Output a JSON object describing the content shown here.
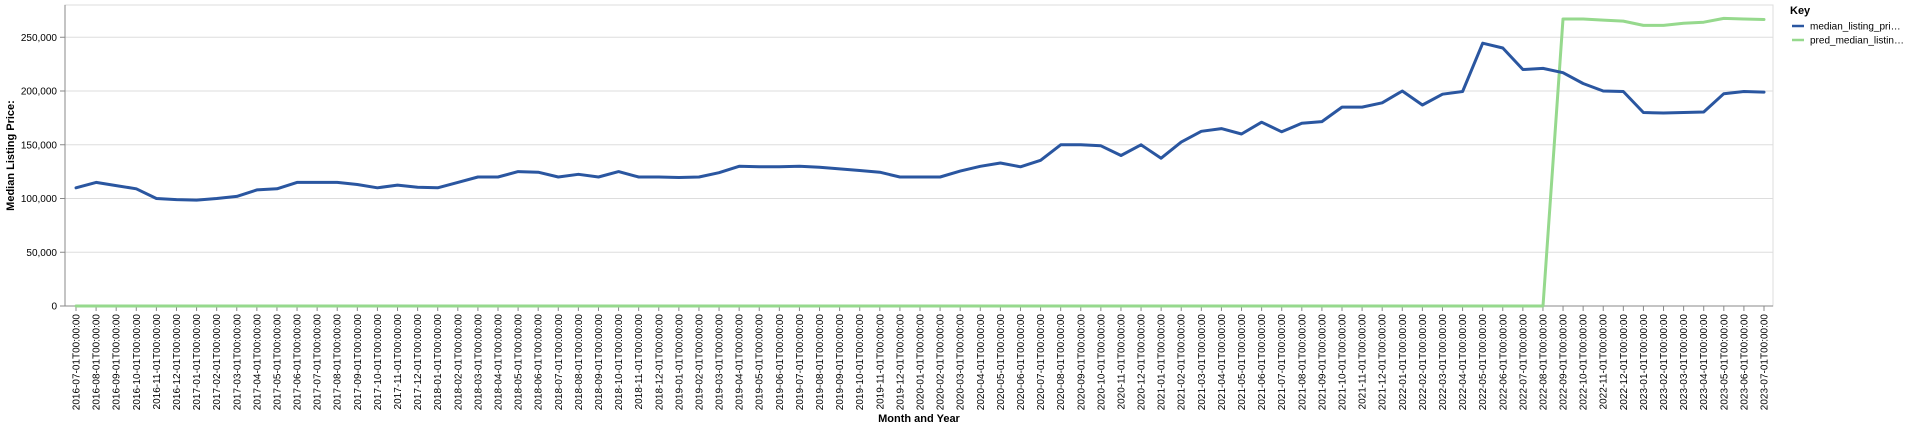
{
  "chart_data": {
    "type": "line",
    "xlabel": "Month and Year",
    "ylabel": "Median Listing Price:",
    "ylim": [
      0,
      280000
    ],
    "yticks": [
      0,
      50000,
      100000,
      150000,
      200000,
      250000
    ],
    "ytick_labels": [
      "0",
      "50,000",
      "100,000",
      "150,000",
      "200,000",
      "250,000"
    ],
    "grid": true,
    "legend_title": "Key",
    "legend_position": "right",
    "x": [
      "2016-07-01T00:00:00",
      "2016-08-01T00:00:00",
      "2016-09-01T00:00:00",
      "2016-10-01T00:00:00",
      "2016-11-01T00:00:00",
      "2016-12-01T00:00:00",
      "2017-01-01T00:00:00",
      "2017-02-01T00:00:00",
      "2017-03-01T00:00:00",
      "2017-04-01T00:00:00",
      "2017-05-01T00:00:00",
      "2017-06-01T00:00:00",
      "2017-07-01T00:00:00",
      "2017-08-01T00:00:00",
      "2017-09-01T00:00:00",
      "2017-10-01T00:00:00",
      "2017-11-01T00:00:00",
      "2017-12-01T00:00:00",
      "2018-01-01T00:00:00",
      "2018-02-01T00:00:00",
      "2018-03-01T00:00:00",
      "2018-04-01T00:00:00",
      "2018-05-01T00:00:00",
      "2018-06-01T00:00:00",
      "2018-07-01T00:00:00",
      "2018-08-01T00:00:00",
      "2018-09-01T00:00:00",
      "2018-10-01T00:00:00",
      "2018-11-01T00:00:00",
      "2018-12-01T00:00:00",
      "2019-01-01T00:00:00",
      "2019-02-01T00:00:00",
      "2019-03-01T00:00:00",
      "2019-04-01T00:00:00",
      "2019-05-01T00:00:00",
      "2019-06-01T00:00:00",
      "2019-07-01T00:00:00",
      "2019-08-01T00:00:00",
      "2019-09-01T00:00:00",
      "2019-10-01T00:00:00",
      "2019-11-01T00:00:00",
      "2019-12-01T00:00:00",
      "2020-01-01T00:00:00",
      "2020-02-01T00:00:00",
      "2020-03-01T00:00:00",
      "2020-04-01T00:00:00",
      "2020-05-01T00:00:00",
      "2020-06-01T00:00:00",
      "2020-07-01T00:00:00",
      "2020-08-01T00:00:00",
      "2020-09-01T00:00:00",
      "2020-10-01T00:00:00",
      "2020-11-01T00:00:00",
      "2020-12-01T00:00:00",
      "2021-01-01T00:00:00",
      "2021-02-01T00:00:00",
      "2021-03-01T00:00:00",
      "2021-04-01T00:00:00",
      "2021-05-01T00:00:00",
      "2021-06-01T00:00:00",
      "2021-07-01T00:00:00",
      "2021-08-01T00:00:00",
      "2021-09-01T00:00:00",
      "2021-10-01T00:00:00",
      "2021-11-01T00:00:00",
      "2021-12-01T00:00:00",
      "2022-01-01T00:00:00",
      "2022-02-01T00:00:00",
      "2022-03-01T00:00:00",
      "2022-04-01T00:00:00",
      "2022-05-01T00:00:00",
      "2022-06-01T00:00:00",
      "2022-07-01T00:00:00",
      "2022-08-01T00:00:00",
      "2022-09-01T00:00:00",
      "2022-10-01T00:00:00",
      "2022-11-01T00:00:00",
      "2022-12-01T00:00:00",
      "2023-01-01T00:00:00",
      "2023-02-01T00:00:00",
      "2023-03-01T00:00:00",
      "2023-04-01T00:00:00",
      "2023-05-01T00:00:00",
      "2023-06-01T00:00:00",
      "2023-07-01T00:00:00"
    ],
    "series": [
      {
        "name": "median_listing_pri…",
        "color": "#2a56a0",
        "values": [
          110000,
          115000,
          112000,
          109000,
          100000,
          99000,
          98500,
          100000,
          102000,
          108000,
          109000,
          115000,
          115000,
          115000,
          113000,
          110000,
          112500,
          110500,
          110000,
          115000,
          120000,
          120000,
          125000,
          124500,
          120000,
          122500,
          120000,
          125000,
          120000,
          120000,
          119500,
          120000,
          124000,
          130000,
          129500,
          129500,
          130000,
          129000,
          127500,
          126000,
          124500,
          120000,
          120000,
          120000,
          125500,
          130000,
          133000,
          129500,
          135500,
          150000,
          150000,
          149000,
          140000,
          150000,
          137500,
          152500,
          162500,
          165000,
          160000,
          171000,
          162000,
          170000,
          171500,
          185000,
          185000,
          189000,
          200000,
          187000,
          197000,
          199500,
          244500,
          240000,
          220000,
          221000,
          217000,
          207000,
          200000,
          199500,
          180000,
          179500,
          180000,
          180500,
          197500,
          199500,
          199000
        ]
      },
      {
        "name": "pred_median_listin…",
        "color": "#96d98d",
        "values": [
          0,
          0,
          0,
          0,
          0,
          0,
          0,
          0,
          0,
          0,
          0,
          0,
          0,
          0,
          0,
          0,
          0,
          0,
          0,
          0,
          0,
          0,
          0,
          0,
          0,
          0,
          0,
          0,
          0,
          0,
          0,
          0,
          0,
          0,
          0,
          0,
          0,
          0,
          0,
          0,
          0,
          0,
          0,
          0,
          0,
          0,
          0,
          0,
          0,
          0,
          0,
          0,
          0,
          0,
          0,
          0,
          0,
          0,
          0,
          0,
          0,
          0,
          0,
          0,
          0,
          0,
          0,
          0,
          0,
          0,
          0,
          0,
          0,
          0,
          267000,
          267000,
          266000,
          265000,
          261000,
          261000,
          263000,
          264000,
          267500,
          267000,
          266500
        ]
      }
    ]
  }
}
